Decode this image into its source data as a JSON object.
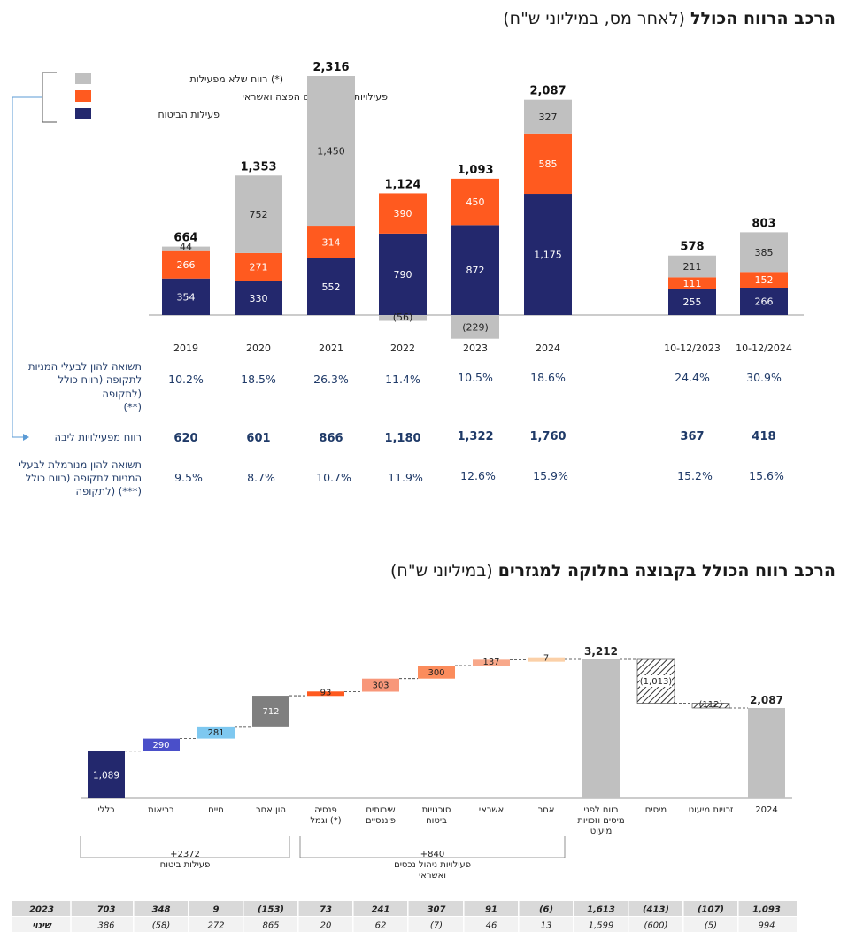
{
  "colors": {
    "insurance": "#23286d",
    "asset_mgmt": "#ff5a1f",
    "non_operating": "#c0c0c0",
    "metric_text": "#1f3a68",
    "bracket": "#5b9bd5"
  },
  "titles": {
    "chart1_bold": "הרכב הרווח הכולל",
    "chart1_light": "(לאחר מס, במיליוני ש\"ח)",
    "chart2_bold": "הרכב רווח הכולל בקבוצה בחלוקה למגזרים",
    "chart2_light": "(במיליוני ש\"ח)"
  },
  "chart_data": [
    {
      "type": "bar",
      "stacked": true,
      "categories": [
        "2019",
        "2020",
        "2021",
        "2022",
        "2023",
        "2024",
        "10-12/2023",
        "10-12/2024"
      ],
      "series": [
        {
          "name": "פעילות הביטוח",
          "color": "#23286d",
          "values": [
            354,
            330,
            552,
            790,
            872,
            1175,
            255,
            266
          ]
        },
        {
          "name": "פעילויות ניהול נכסים הפצה ואשראי",
          "color": "#ff5a1f",
          "values": [
            266,
            271,
            314,
            390,
            450,
            585,
            111,
            152
          ]
        },
        {
          "name": "(*) רווח שלא מפעילות",
          "color": "#c0c0c0",
          "values": [
            44,
            752,
            1450,
            -56,
            -229,
            327,
            211,
            385
          ]
        }
      ],
      "value_labels": {
        "insurance": [
          "354",
          "330",
          "552",
          "790",
          "872",
          "1,175",
          "255",
          "266"
        ],
        "asset_mgmt": [
          "266",
          "271",
          "314",
          "390",
          "450",
          "585",
          "111",
          "152"
        ],
        "non_operating": [
          "44",
          "752",
          "1,450",
          "(56)",
          "(229)",
          "327",
          "211",
          "385"
        ]
      },
      "totals": [
        664,
        1353,
        2316,
        1124,
        1093,
        2087,
        578,
        803
      ],
      "total_labels": [
        "664",
        "1,353",
        "2,316",
        "1,124",
        "1,093",
        "2,087",
        "578",
        "803"
      ],
      "legend_position": "top-left",
      "metrics": [
        {
          "label_lines": [
            "תשואה להון לבעלי המניות",
            "לתקופה (רווח כולל",
            "לתקופה)",
            "(**)"
          ],
          "values": [
            "10.2%",
            "18.5%",
            "26.3%",
            "11.4%",
            "10.5%",
            "18.6%",
            "24.4%",
            "30.9%"
          ],
          "bold": false
        },
        {
          "label_lines": [
            "רווח מפעילויות ליבה"
          ],
          "values": [
            "620",
            "601",
            "866",
            "1,180",
            "1,322",
            "1,760",
            "367",
            "418"
          ],
          "bold": true
        },
        {
          "label_lines": [
            "תשואה להון מנורמלת לבעלי",
            "המניות לתקופה (רווח כולל",
            "לתקופה) (***)"
          ],
          "values": [
            "9.5%",
            "8.7%",
            "10.7%",
            "11.9%",
            "12.6%",
            "15.9%",
            "15.2%",
            "15.6%"
          ],
          "bold": false
        }
      ]
    },
    {
      "type": "waterfall",
      "steps": [
        {
          "label_lines": [
            "כללי"
          ],
          "value": 1089,
          "kind": "start",
          "color": "#23286d",
          "value_label": "1,089"
        },
        {
          "label_lines": [
            "בריאות"
          ],
          "value": 290,
          "kind": "delta",
          "color": "#4a4fc9",
          "value_label": "290"
        },
        {
          "label_lines": [
            "חיים"
          ],
          "value": 281,
          "kind": "delta",
          "color": "#7ec8f0",
          "value_label": "281"
        },
        {
          "label_lines": [
            "הון אחר"
          ],
          "value": 712,
          "kind": "delta",
          "color": "#7f7f7f",
          "value_label": "712"
        },
        {
          "label_lines": [
            "פנסיה",
            "וגמל (*)"
          ],
          "value": 93,
          "kind": "delta",
          "color": "#ff5a1f",
          "value_label": "93"
        },
        {
          "label_lines": [
            "שירותים",
            "פיננסיים"
          ],
          "value": 303,
          "kind": "delta",
          "color": "#f8977a",
          "value_label": "303"
        },
        {
          "label_lines": [
            "סוכנויות",
            "ביטוח"
          ],
          "value": 300,
          "kind": "delta",
          "color": "#fb8c5c",
          "value_label": "300"
        },
        {
          "label_lines": [
            "אשראי"
          ],
          "value": 137,
          "kind": "delta",
          "color": "#f8a88a",
          "value_label": "137"
        },
        {
          "label_lines": [
            "אחר"
          ],
          "value": 7,
          "kind": "delta",
          "color": "#fbd0a8",
          "value_label": "7"
        },
        {
          "label_lines": [
            "רווח לפני",
            "מיסים וזכויות",
            "מיעוט"
          ],
          "value": 3212,
          "kind": "subtotal",
          "color": "#c0c0c0",
          "value_label": "3,212"
        },
        {
          "label_lines": [
            "מיסים"
          ],
          "value": -1013,
          "kind": "delta",
          "color": "hatch",
          "value_label": "(1,013)"
        },
        {
          "label_lines": [
            "זכויות מיעוט"
          ],
          "value": -112,
          "kind": "delta",
          "color": "hatch",
          "value_label": "(112)"
        },
        {
          "label_lines": [
            "2024"
          ],
          "value": 2087,
          "kind": "total",
          "color": "#c0c0c0",
          "value_label": "2,087"
        }
      ],
      "groups": [
        {
          "label_lines": [
            "+2372",
            "פעילות ביטוח"
          ],
          "from": 0,
          "to": 3
        },
        {
          "label_lines": [
            "+840",
            "פעילויות ניהול נכסים",
            "ואשראי"
          ],
          "from": 4,
          "to": 8
        }
      ],
      "table": [
        {
          "label": "2023",
          "values": [
            "703",
            "348",
            "9",
            "(153)",
            "73",
            "241",
            "307",
            "91",
            "(6)",
            "1,613",
            "(413)",
            "(107)",
            "1,093"
          ]
        },
        {
          "label": "שינוי",
          "values": [
            "386",
            "(58)",
            "272",
            "865",
            "20",
            "62",
            "(7)",
            "46",
            "13",
            "1,599",
            "(600)",
            "(5)",
            "994"
          ]
        }
      ]
    }
  ]
}
